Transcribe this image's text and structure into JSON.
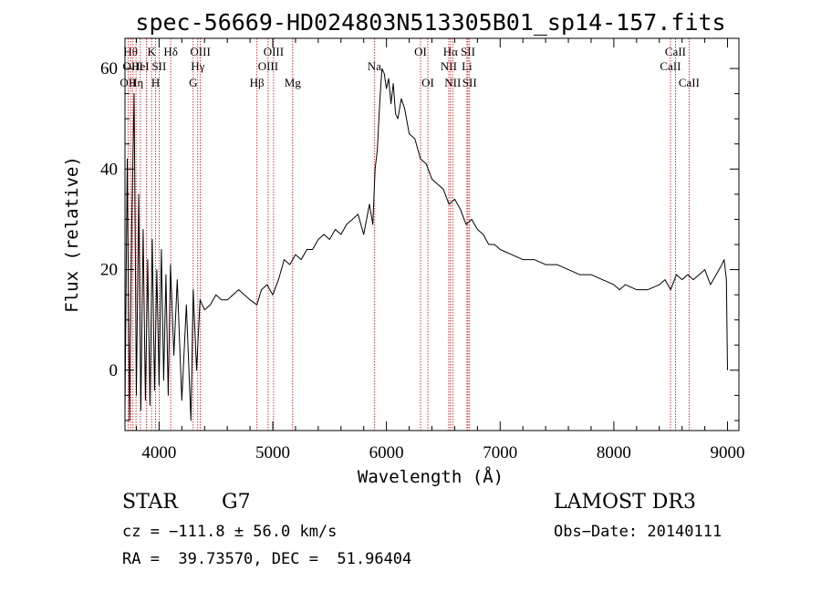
{
  "chart_data": {
    "type": "line",
    "title": "spec-56669-HD024803N513305B01_sp14-157.fits",
    "xlabel": "Wavelength (Å)",
    "ylabel": "Flux (relative)",
    "xlim": [
      3700,
      9100
    ],
    "ylim": [
      -12,
      66
    ],
    "x_ticks": [
      4000,
      5000,
      6000,
      7000,
      8000,
      9000
    ],
    "y_ticks": [
      0,
      20,
      40,
      60
    ],
    "line_color": "#000000",
    "marker_color": "#cc0000",
    "series": [
      {
        "name": "spectrum",
        "x": [
          3700,
          3720,
          3740,
          3760,
          3780,
          3800,
          3820,
          3840,
          3860,
          3880,
          3900,
          3920,
          3940,
          3960,
          3980,
          4000,
          4020,
          4040,
          4060,
          4080,
          4100,
          4130,
          4160,
          4200,
          4240,
          4280,
          4300,
          4330,
          4360,
          4400,
          4450,
          4500,
          4550,
          4600,
          4650,
          4700,
          4750,
          4800,
          4860,
          4900,
          4950,
          5000,
          5050,
          5100,
          5150,
          5200,
          5250,
          5300,
          5350,
          5400,
          5450,
          5500,
          5550,
          5600,
          5650,
          5700,
          5750,
          5800,
          5850,
          5880,
          5900,
          5920,
          5940,
          5960,
          5980,
          6000,
          6020,
          6040,
          6060,
          6080,
          6100,
          6130,
          6160,
          6200,
          6250,
          6300,
          6350,
          6400,
          6450,
          6500,
          6550,
          6600,
          6650,
          6700,
          6750,
          6800,
          6850,
          6900,
          6950,
          7000,
          7100,
          7200,
          7300,
          7400,
          7500,
          7600,
          7700,
          7800,
          7900,
          8000,
          8050,
          8100,
          8200,
          8300,
          8400,
          8450,
          8500,
          8550,
          8600,
          8650,
          8700,
          8750,
          8800,
          8850,
          8900,
          8950,
          8970,
          8990,
          9000
        ],
        "values": [
          -8,
          42,
          -10,
          30,
          55,
          -5,
          35,
          -8,
          28,
          -6,
          22,
          -7,
          26,
          -4,
          20,
          -3,
          24,
          -2,
          19,
          -5,
          21,
          3,
          18,
          -6,
          13,
          -10,
          16,
          0,
          14,
          12,
          13,
          15,
          14,
          14,
          15,
          16,
          15,
          14,
          13,
          16,
          17,
          15,
          18,
          22,
          21,
          23,
          22,
          24,
          24,
          26,
          27,
          26,
          28,
          27,
          29,
          30,
          31,
          27,
          33,
          29,
          40,
          44,
          53,
          60,
          59,
          56,
          58,
          53,
          57,
          51,
          50,
          54,
          52,
          47,
          46,
          42,
          41,
          38,
          37,
          36,
          33,
          34,
          32,
          29,
          30,
          28,
          27,
          25,
          25,
          24,
          23,
          22,
          22,
          21,
          21,
          20,
          19,
          19,
          18,
          17,
          16,
          17,
          16,
          16,
          17,
          18,
          16,
          19,
          18,
          19,
          18,
          19,
          20,
          17,
          19,
          21,
          22,
          18,
          0
        ]
      }
    ],
    "line_markers": [
      {
        "wl": 3727,
        "label": "OII",
        "row": 3
      },
      {
        "wl": 3750,
        "label": "Hθ",
        "row": 1
      },
      {
        "wl": 3770,
        "label": "OIII",
        "row": 2
      },
      {
        "wl": 3797,
        "label": "Hη",
        "row": 3
      },
      {
        "wl": 3835,
        "label": "HeI",
        "row": 2
      },
      {
        "wl": 3889,
        "label": "",
        "row": 0
      },
      {
        "wl": 3934,
        "label": "K",
        "row": 1
      },
      {
        "wl": 3969,
        "label": "H",
        "row": 3
      },
      {
        "wl": 4000,
        "label": "SII",
        "row": 2
      },
      {
        "wl": 4102,
        "label": "Hδ",
        "row": 1
      },
      {
        "wl": 4300,
        "label": "G",
        "row": 3
      },
      {
        "wl": 4340,
        "label": "Hγ",
        "row": 2
      },
      {
        "wl": 4363,
        "label": "OIII",
        "row": 1
      },
      {
        "wl": 4861,
        "label": "Hβ",
        "row": 3
      },
      {
        "wl": 4959,
        "label": "OIII",
        "row": 2
      },
      {
        "wl": 5007,
        "label": "OIII",
        "row": 1
      },
      {
        "wl": 5175,
        "label": "Mg",
        "row": 3
      },
      {
        "wl": 5893,
        "label": "Na",
        "row": 2
      },
      {
        "wl": 6300,
        "label": "OI",
        "row": 1
      },
      {
        "wl": 6364,
        "label": "OI",
        "row": 3
      },
      {
        "wl": 6548,
        "label": "NII",
        "row": 2
      },
      {
        "wl": 6563,
        "label": "Hα",
        "row": 1
      },
      {
        "wl": 6583,
        "label": "NII",
        "row": 3
      },
      {
        "wl": 6708,
        "label": "Li",
        "row": 2
      },
      {
        "wl": 6717,
        "label": "SII",
        "row": 1
      },
      {
        "wl": 6731,
        "label": "SII",
        "row": 3
      },
      {
        "wl": 8498,
        "label": "CaII",
        "row": 2
      },
      {
        "wl": 8542,
        "label": "CaII",
        "row": 1
      },
      {
        "wl": 8662,
        "label": "CaII",
        "row": 3
      }
    ]
  },
  "info": {
    "object_class": "STAR",
    "subclass": "G7",
    "survey": "LAMOST DR3",
    "cz": "cz = −111.8 ± 56.0 km/s",
    "obs_date": "Obs−Date: 20140111",
    "coords": "RA =  39.73570, DEC =  51.96404"
  }
}
